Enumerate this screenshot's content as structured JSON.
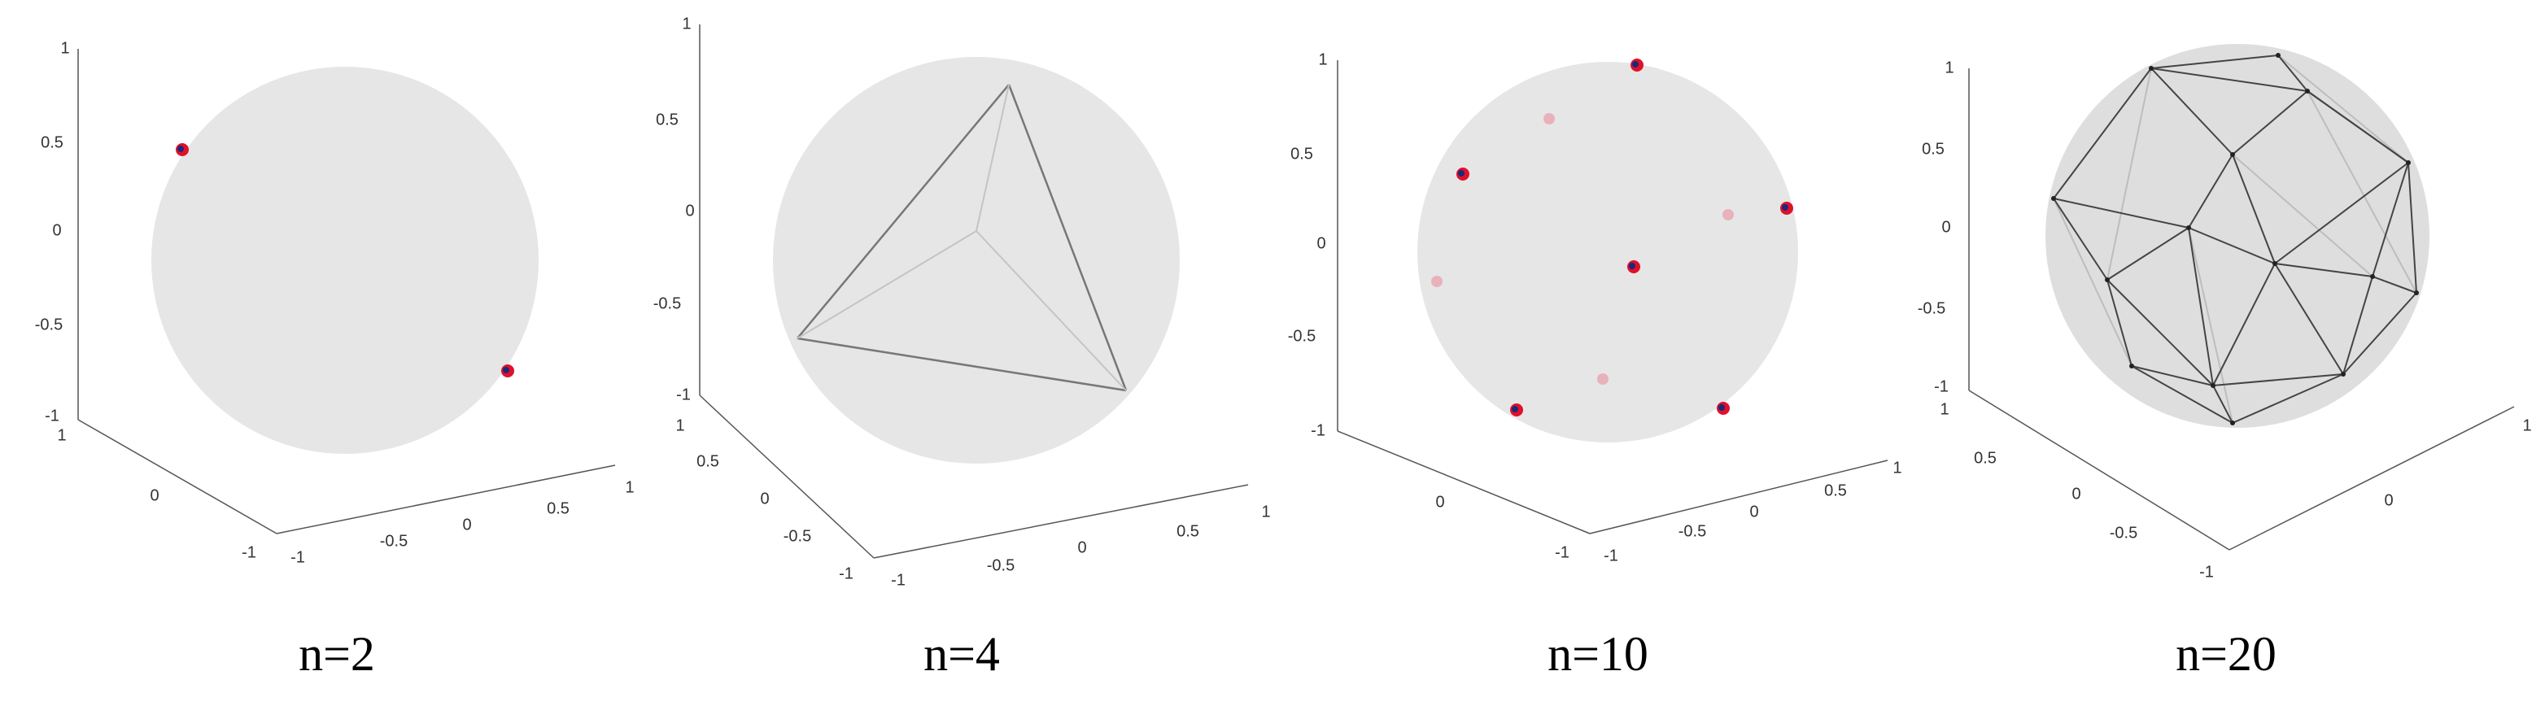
{
  "panels": [
    {
      "caption": "n=2",
      "z_ticks": [
        "1",
        "0.5",
        "0",
        "-0.5",
        "-1"
      ],
      "left_ticks": [
        "1",
        "0",
        "-1"
      ],
      "right_ticks": [
        "-1",
        "-0.5",
        "0",
        "0.5",
        "1"
      ]
    },
    {
      "caption": "n=4",
      "z_ticks": [
        "1",
        "0.5",
        "0",
        "-0.5",
        "-1"
      ],
      "left_ticks": [
        "1",
        "0.5",
        "0",
        "-0.5",
        "-1"
      ],
      "right_ticks": [
        "-1",
        "-0.5",
        "0",
        "0.5",
        "1"
      ]
    },
    {
      "caption": "n=10",
      "z_ticks": [
        "1",
        "0.5",
        "0",
        "-0.5",
        "-1"
      ],
      "left_ticks": [
        "0",
        "-1"
      ],
      "right_ticks": [
        "-1",
        "-0.5",
        "0",
        "0.5",
        "1"
      ]
    },
    {
      "caption": "n=20",
      "z_ticks": [
        "1",
        "0.5",
        "0",
        "-0.5",
        "-1"
      ],
      "left_ticks": [
        "1",
        "0.5",
        "0",
        "-0.5",
        "-1"
      ],
      "right_ticks": [
        "0",
        "1"
      ]
    }
  ]
}
